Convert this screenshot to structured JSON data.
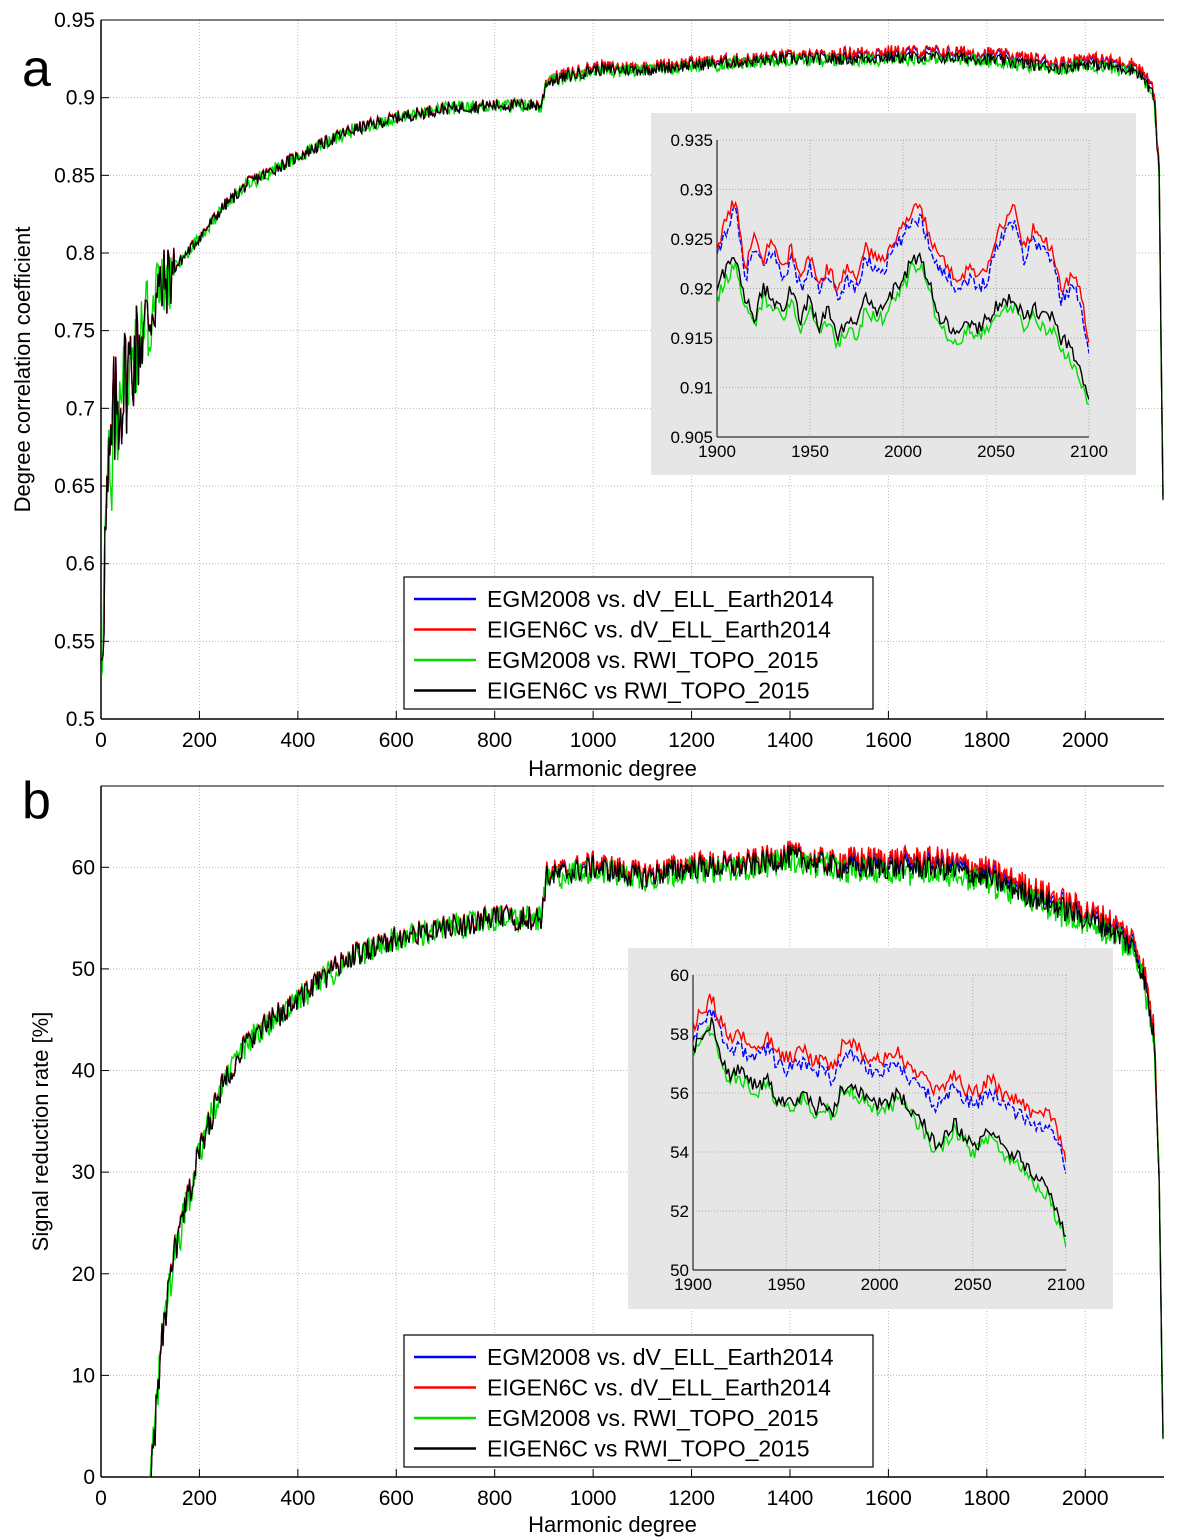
{
  "colors": {
    "egm_dv": "#0000ff",
    "eigen_dv": "#ff0000",
    "egm_rwi": "#00dd00",
    "eigen_rwi": "#000000",
    "inset_bg": "#e6e6e6",
    "grid": "#b8b8b8"
  },
  "legend": [
    "EGM2008 vs. dV_ELL_Earth2014",
    "EIGEN6C vs. dV_ELL_Earth2014",
    "EGM2008 vs. RWI_TOPO_2015",
    "EIGEN6C vs RWI_TOPO_2015"
  ],
  "chart_data": [
    {
      "panel_label": "a",
      "type": "line",
      "xlabel": "Harmonic degree",
      "ylabel": "Degree correlation coefficient",
      "xlim": [
        0,
        2160
      ],
      "ylim": [
        0.5,
        0.95
      ],
      "xticks": [
        0,
        200,
        400,
        600,
        800,
        1000,
        1200,
        1400,
        1600,
        1800,
        2000
      ],
      "yticks": [
        0.5,
        0.55,
        0.6,
        0.65,
        0.7,
        0.75,
        0.8,
        0.85,
        0.9,
        0.95
      ],
      "ytick_labels": [
        "0.5",
        "0.55",
        "0.6",
        "0.65",
        "0.7",
        "0.75",
        "0.8",
        "0.85",
        "0.9",
        "0.95"
      ],
      "legend_position": "bottom-center",
      "grid": true,
      "trend": {
        "x": [
          2,
          10,
          25,
          50,
          80,
          110,
          150,
          200,
          250,
          300,
          400,
          500,
          600,
          700,
          800,
          895,
          905,
          1000,
          1100,
          1200,
          1300,
          1400,
          1500,
          1600,
          1700,
          1800,
          1900,
          1950,
          2000,
          2050,
          2100,
          2120,
          2140,
          2150,
          2158
        ],
        "y": [
          0.56,
          0.62,
          0.69,
          0.72,
          0.745,
          0.77,
          0.79,
          0.81,
          0.83,
          0.845,
          0.862,
          0.878,
          0.887,
          0.893,
          0.895,
          0.895,
          0.91,
          0.918,
          0.918,
          0.921,
          0.923,
          0.925,
          0.925,
          0.926,
          0.926,
          0.925,
          0.921,
          0.919,
          0.922,
          0.92,
          0.918,
          0.912,
          0.9,
          0.85,
          0.64
        ]
      },
      "series_offsets": {
        "egm_dv": 0.003,
        "eigen_dv": 0.004,
        "egm_rwi": -0.001,
        "eigen_rwi": 0.0
      },
      "inset": {
        "xlim": [
          1900,
          2100
        ],
        "ylim": [
          0.905,
          0.935
        ],
        "xticks": [
          1900,
          1950,
          2000,
          2050,
          2100
        ],
        "yticks": [
          0.905,
          0.91,
          0.915,
          0.92,
          0.925,
          0.93,
          0.935
        ],
        "ytick_labels": [
          "0.905",
          "0.91",
          "0.915",
          "0.92",
          "0.925",
          "0.93",
          "0.935"
        ],
        "series": [
          {
            "name": "EGM2008 vs. dV_ELL_Earth2014",
            "x": [
              1900,
              1905,
              1910,
              1915,
              1920,
              1925,
              1930,
              1935,
              1940,
              1945,
              1950,
              1955,
              1960,
              1965,
              1970,
              1975,
              1980,
              1985,
              1990,
              1995,
              2000,
              2005,
              2010,
              2015,
              2020,
              2025,
              2030,
              2035,
              2040,
              2045,
              2050,
              2055,
              2060,
              2065,
              2070,
              2075,
              2080,
              2085,
              2090,
              2095,
              2100
            ],
            "y": [
              0.923,
              0.926,
              0.928,
              0.921,
              0.924,
              0.922,
              0.924,
              0.921,
              0.923,
              0.92,
              0.922,
              0.92,
              0.921,
              0.919,
              0.921,
              0.92,
              0.923,
              0.922,
              0.922,
              0.924,
              0.925,
              0.927,
              0.927,
              0.924,
              0.922,
              0.921,
              0.92,
              0.921,
              0.92,
              0.921,
              0.924,
              0.926,
              0.927,
              0.923,
              0.925,
              0.924,
              0.923,
              0.919,
              0.92,
              0.919,
              0.914
            ]
          },
          {
            "name": "EIGEN6C vs. dV_ELL_Earth2014",
            "x": [
              1900,
              1905,
              1910,
              1915,
              1920,
              1925,
              1930,
              1935,
              1940,
              1945,
              1950,
              1955,
              1960,
              1965,
              1970,
              1975,
              1980,
              1985,
              1990,
              1995,
              2000,
              2005,
              2010,
              2015,
              2020,
              2025,
              2030,
              2035,
              2040,
              2045,
              2050,
              2055,
              2060,
              2065,
              2070,
              2075,
              2080,
              2085,
              2090,
              2095,
              2100
            ],
            "y": [
              0.924,
              0.927,
              0.929,
              0.922,
              0.925,
              0.923,
              0.925,
              0.922,
              0.924,
              0.921,
              0.923,
              0.921,
              0.922,
              0.92,
              0.922,
              0.921,
              0.924,
              0.923,
              0.923,
              0.925,
              0.926,
              0.928,
              0.928,
              0.925,
              0.923,
              0.922,
              0.921,
              0.922,
              0.921,
              0.922,
              0.925,
              0.927,
              0.928,
              0.924,
              0.926,
              0.925,
              0.924,
              0.92,
              0.921,
              0.92,
              0.915
            ]
          },
          {
            "name": "EGM2008 vs. RWI_TOPO_2015",
            "x": [
              1900,
              1905,
              1910,
              1915,
              1920,
              1925,
              1930,
              1935,
              1940,
              1945,
              1950,
              1955,
              1960,
              1965,
              1970,
              1975,
              1980,
              1985,
              1990,
              1995,
              2000,
              2005,
              2010,
              2015,
              2020,
              2025,
              2030,
              2035,
              2040,
              2045,
              2050,
              2055,
              2060,
              2065,
              2070,
              2075,
              2080,
              2085,
              2090,
              2095,
              2100
            ],
            "y": [
              0.919,
              0.921,
              0.922,
              0.918,
              0.916,
              0.919,
              0.918,
              0.917,
              0.919,
              0.916,
              0.918,
              0.915,
              0.917,
              0.914,
              0.916,
              0.915,
              0.918,
              0.917,
              0.917,
              0.919,
              0.92,
              0.922,
              0.922,
              0.919,
              0.916,
              0.915,
              0.914,
              0.916,
              0.915,
              0.916,
              0.917,
              0.918,
              0.918,
              0.916,
              0.917,
              0.916,
              0.916,
              0.914,
              0.913,
              0.911,
              0.908
            ]
          },
          {
            "name": "EIGEN6C vs RWI_TOPO_2015",
            "x": [
              1900,
              1905,
              1910,
              1915,
              1920,
              1925,
              1930,
              1935,
              1940,
              1945,
              1950,
              1955,
              1960,
              1965,
              1970,
              1975,
              1980,
              1985,
              1990,
              1995,
              2000,
              2005,
              2010,
              2015,
              2020,
              2025,
              2030,
              2035,
              2040,
              2045,
              2050,
              2055,
              2060,
              2065,
              2070,
              2075,
              2080,
              2085,
              2090,
              2095,
              2100
            ],
            "y": [
              0.92,
              0.922,
              0.923,
              0.919,
              0.917,
              0.92,
              0.919,
              0.918,
              0.92,
              0.917,
              0.919,
              0.916,
              0.918,
              0.915,
              0.917,
              0.916,
              0.919,
              0.918,
              0.918,
              0.92,
              0.921,
              0.923,
              0.923,
              0.92,
              0.917,
              0.916,
              0.915,
              0.917,
              0.916,
              0.917,
              0.918,
              0.919,
              0.919,
              0.917,
              0.918,
              0.917,
              0.917,
              0.915,
              0.914,
              0.912,
              0.909
            ]
          }
        ]
      }
    },
    {
      "panel_label": "b",
      "type": "line",
      "xlabel": "Harmonic degree",
      "ylabel": "Signal reduction rate [%]",
      "xlim": [
        0,
        2160
      ],
      "ylim": [
        0,
        68
      ],
      "xticks": [
        0,
        200,
        400,
        600,
        800,
        1000,
        1200,
        1400,
        1600,
        1800,
        2000
      ],
      "yticks": [
        0,
        10,
        20,
        30,
        40,
        50,
        60
      ],
      "ytick_labels": [
        "0",
        "10",
        "20",
        "30",
        "40",
        "50",
        "60"
      ],
      "legend_position": "bottom-center",
      "grid": true,
      "trend": {
        "x": [
          100,
          110,
          125,
          150,
          200,
          250,
          300,
          400,
          500,
          600,
          700,
          800,
          895,
          905,
          1000,
          1100,
          1200,
          1300,
          1400,
          1500,
          1600,
          1700,
          1800,
          1900,
          1950,
          2000,
          2050,
          2100,
          2120,
          2140,
          2150,
          2158
        ],
        "y": [
          0,
          5,
          14,
          22,
          32,
          39,
          43,
          47,
          51,
          53,
          54,
          55,
          55,
          59,
          60,
          59,
          60,
          60,
          61,
          60,
          60,
          60,
          59,
          57,
          56,
          55,
          54,
          52,
          49,
          43,
          30,
          4
        ]
      },
      "series_offsets": {
        "egm_dv": 0.5,
        "eigen_dv": 0.9,
        "egm_rwi": -0.4,
        "eigen_rwi": 0.0
      },
      "inset": {
        "xlim": [
          1900,
          2100
        ],
        "ylim": [
          50,
          60
        ],
        "xticks": [
          1900,
          1950,
          2000,
          2050,
          2100
        ],
        "yticks": [
          50,
          52,
          54,
          56,
          58,
          60
        ],
        "ytick_labels": [
          "50",
          "52",
          "54",
          "56",
          "58",
          "60"
        ],
        "series": [
          {
            "name": "EGM2008 vs. dV_ELL_Earth2014",
            "x": [
              1900,
              1905,
              1910,
              1915,
              1920,
              1925,
              1930,
              1935,
              1940,
              1945,
              1950,
              1955,
              1960,
              1965,
              1970,
              1975,
              1980,
              1985,
              1990,
              1995,
              2000,
              2005,
              2010,
              2015,
              2020,
              2025,
              2030,
              2035,
              2040,
              2045,
              2050,
              2055,
              2060,
              2065,
              2070,
              2075,
              2080,
              2085,
              2090,
              2095,
              2100
            ],
            "y": [
              57.8,
              58.4,
              58.8,
              58.0,
              57.4,
              57.6,
              57.2,
              57.3,
              57.5,
              57.0,
              56.8,
              56.9,
              57.1,
              56.6,
              56.9,
              56.4,
              57.2,
              57.3,
              57.0,
              56.8,
              56.7,
              56.8,
              57.0,
              56.6,
              56.3,
              56.0,
              55.6,
              55.9,
              56.2,
              55.8,
              55.6,
              55.8,
              56.1,
              55.6,
              55.4,
              55.3,
              55.0,
              54.8,
              55.0,
              54.5,
              53.4
            ]
          },
          {
            "name": "EIGEN6C vs. dV_ELL_Earth2014",
            "x": [
              1900,
              1905,
              1910,
              1915,
              1920,
              1925,
              1930,
              1935,
              1940,
              1945,
              1950,
              1955,
              1960,
              1965,
              1970,
              1975,
              1980,
              1985,
              1990,
              1995,
              2000,
              2005,
              2010,
              2015,
              2020,
              2025,
              2030,
              2035,
              2040,
              2045,
              2050,
              2055,
              2060,
              2065,
              2070,
              2075,
              2080,
              2085,
              2090,
              2095,
              2100
            ],
            "y": [
              58.2,
              58.8,
              59.2,
              58.4,
              57.8,
              58.0,
              57.6,
              57.7,
              57.9,
              57.4,
              57.2,
              57.3,
              57.5,
              57.0,
              57.3,
              56.8,
              57.6,
              57.7,
              57.4,
              57.2,
              57.1,
              57.2,
              57.4,
              57.0,
              56.7,
              56.4,
              56.0,
              56.3,
              56.6,
              56.2,
              56.0,
              56.2,
              56.5,
              56.0,
              55.8,
              55.7,
              55.4,
              55.2,
              55.4,
              54.9,
              53.6
            ]
          },
          {
            "name": "EGM2008 vs. RWI_TOPO_2015",
            "x": [
              1900,
              1905,
              1910,
              1915,
              1920,
              1925,
              1930,
              1935,
              1940,
              1945,
              1950,
              1955,
              1960,
              1965,
              1970,
              1975,
              1980,
              1985,
              1990,
              1995,
              2000,
              2005,
              2010,
              2015,
              2020,
              2025,
              2030,
              2035,
              2040,
              2045,
              2050,
              2055,
              2060,
              2065,
              2070,
              2075,
              2080,
              2085,
              2090,
              2095,
              2100
            ],
            "y": [
              57.2,
              57.8,
              58.2,
              57.0,
              56.4,
              56.6,
              56.2,
              56.0,
              56.3,
              55.6,
              55.5,
              55.6,
              55.9,
              55.2,
              55.6,
              55.1,
              56.0,
              56.1,
              55.8,
              55.6,
              55.4,
              55.5,
              55.8,
              55.4,
              55.0,
              54.6,
              54.0,
              54.3,
              54.8,
              54.4,
              54.0,
              54.2,
              54.6,
              54.0,
              53.7,
              53.6,
              53.2,
              52.8,
              52.6,
              51.8,
              51.0
            ]
          },
          {
            "name": "EIGEN6C vs RWI_TOPO_2015",
            "x": [
              1900,
              1905,
              1910,
              1915,
              1920,
              1925,
              1930,
              1935,
              1940,
              1945,
              1950,
              1955,
              1960,
              1965,
              1970,
              1975,
              1980,
              1985,
              1990,
              1995,
              2000,
              2005,
              2010,
              2015,
              2020,
              2025,
              2030,
              2035,
              2040,
              2045,
              2050,
              2055,
              2060,
              2065,
              2070,
              2075,
              2080,
              2085,
              2090,
              2095,
              2100
            ],
            "y": [
              57.4,
              58.0,
              58.4,
              57.2,
              56.6,
              56.8,
              56.4,
              56.2,
              56.5,
              55.8,
              55.7,
              55.8,
              56.1,
              55.4,
              55.8,
              55.3,
              56.2,
              56.3,
              56.0,
              55.8,
              55.6,
              55.7,
              56.0,
              55.6,
              55.2,
              54.8,
              54.2,
              54.5,
              55.0,
              54.6,
              54.2,
              54.4,
              54.8,
              54.2,
              53.9,
              53.8,
              53.4,
              53.0,
              52.8,
              52.0,
              51.2
            ]
          }
        ]
      }
    }
  ]
}
